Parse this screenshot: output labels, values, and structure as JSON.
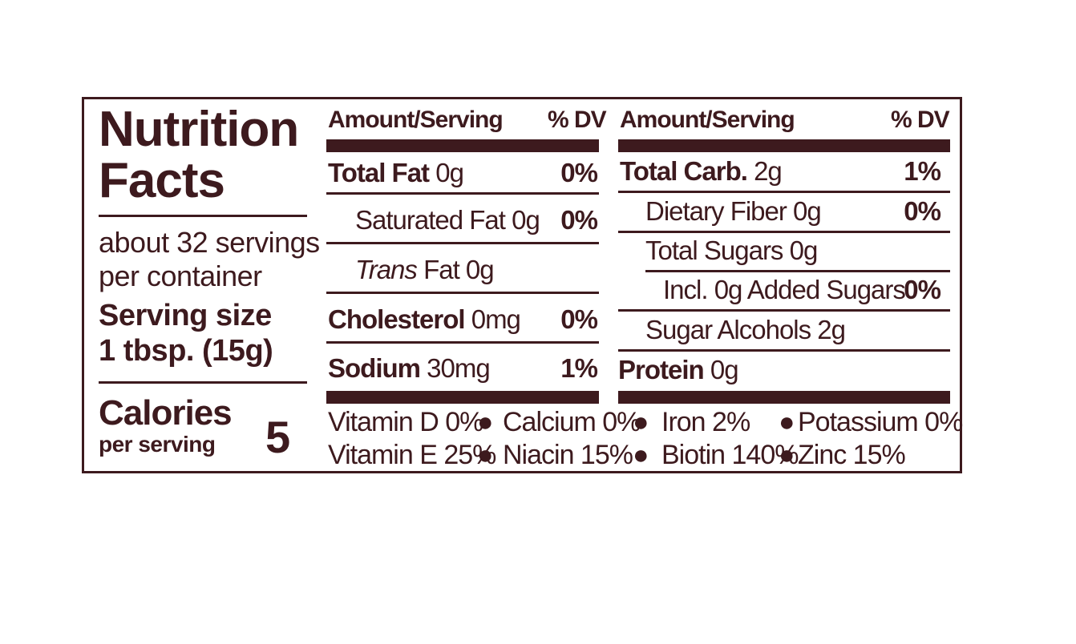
{
  "title": [
    "Nutrition",
    "Facts"
  ],
  "servings": [
    "about 32 servings",
    "per container"
  ],
  "serving_size": [
    "Serving size",
    "1 tbsp. (15g)"
  ],
  "calories": {
    "label": "Calories",
    "sub": "per serving",
    "value": "5"
  },
  "left_header": {
    "amount": "Amount/Serving",
    "dv": "% DV"
  },
  "right_header": {
    "amount": "Amount/Serving",
    "dv": "% DV"
  },
  "left_rows": [
    {
      "bold": "Total Fat",
      "rest": " 0g",
      "dv": "0%"
    },
    {
      "bold": "",
      "rest": "Saturated Fat 0g",
      "dv": "0%"
    },
    {
      "italic": "Trans",
      "rest": " Fat 0g",
      "dv": ""
    },
    {
      "bold": "Cholesterol",
      "rest": " 0mg",
      "dv": "0%"
    },
    {
      "bold": "Sodium",
      "rest": " 30mg",
      "dv": "1%"
    }
  ],
  "right_rows": [
    {
      "bold": "Total Carb.",
      "rest": " 2g",
      "dv": "1%"
    },
    {
      "bold": "",
      "rest": "Dietary Fiber 0g",
      "dv": "0%"
    },
    {
      "bold": "",
      "rest": "Total Sugars 0g",
      "dv": ""
    },
    {
      "bold": "",
      "rest": "Incl. 0g Added Sugars",
      "dv": "0%"
    },
    {
      "bold": "",
      "rest": "Sugar Alcohols 2g",
      "dv": ""
    },
    {
      "bold": "Protein",
      "rest": " 0g",
      "dv": ""
    }
  ],
  "vitamins": {
    "row1": [
      "Vitamin D 0%",
      "Calcium 0%",
      "Iron 2%",
      "Potassium 0%"
    ],
    "row2": [
      "Vitamin E 25%",
      "Niacin 15%",
      "Biotin 140%",
      "Zinc 15%"
    ],
    "bullet": "●"
  },
  "colors": {
    "ink": "#3d1a1e",
    "background": "#ffffff"
  }
}
